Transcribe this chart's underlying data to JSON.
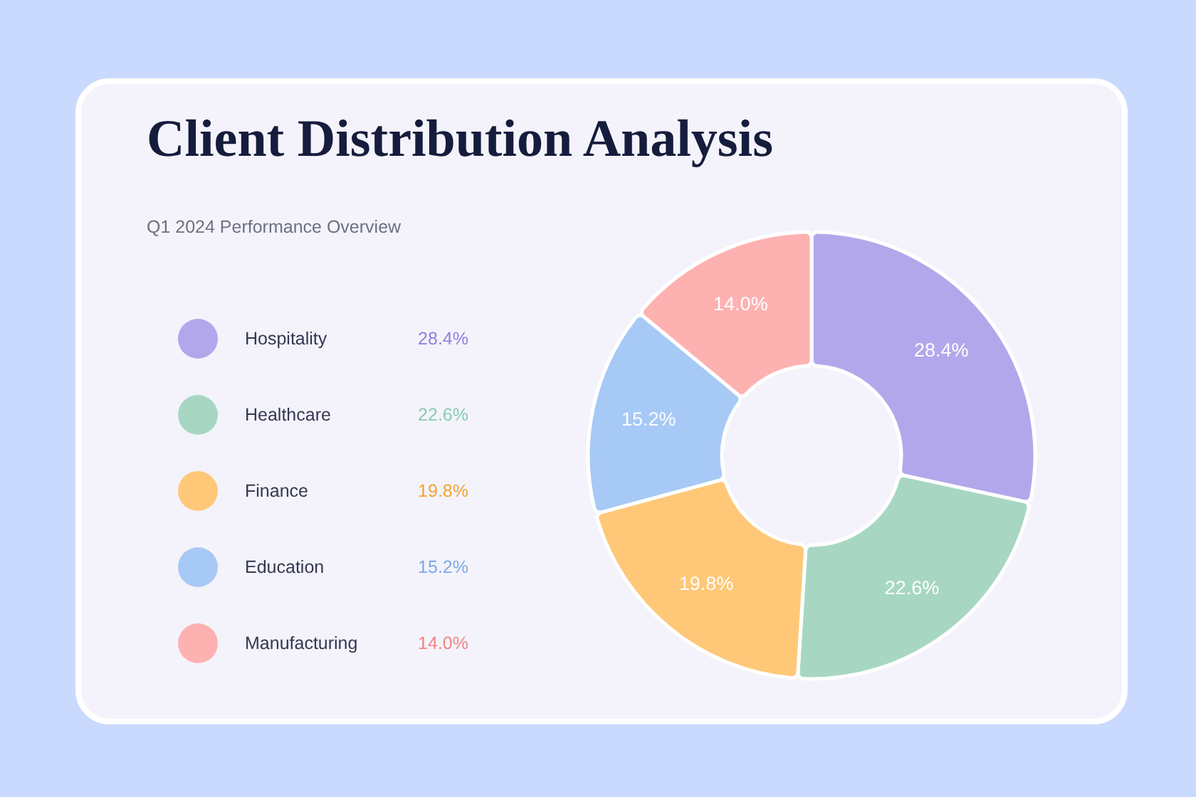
{
  "chart_data": {
    "type": "donut",
    "title": "Client Distribution Analysis",
    "subtitle": "Q1 2024 Performance Overview",
    "categories": [
      "Hospitality",
      "Healthcare",
      "Finance",
      "Education",
      "Manufacturing"
    ],
    "values": [
      28.4,
      22.6,
      19.8,
      15.2,
      14.0
    ],
    "value_labels": [
      "28.4%",
      "22.6%",
      "19.8%",
      "15.2%",
      "14.0%"
    ],
    "colors": [
      "#b3a7ec",
      "#a7d7c3",
      "#fec878",
      "#a7c9f6",
      "#feb1b1"
    ],
    "legend": "left"
  }
}
